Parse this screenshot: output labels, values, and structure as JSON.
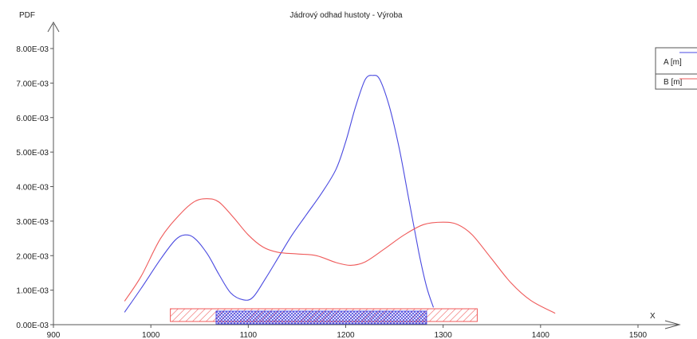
{
  "chart_data": {
    "type": "line",
    "title": "Jádrový odhad hustoty - Výroba",
    "xlabel": "X",
    "ylabel": "PDF",
    "xlim": [
      900,
      1500
    ],
    "ylim": [
      0,
      0.008
    ],
    "x_ticks": [
      "900",
      "1000",
      "1100",
      "1200",
      "1300",
      "1400",
      "1500"
    ],
    "y_ticks": [
      "0.00E-03",
      "1.00E-03",
      "2.00E-03",
      "3.00E-03",
      "4.00E-03",
      "5.00E-03",
      "6.00E-03",
      "7.00E-03",
      "8.00E-03"
    ],
    "legend_position": "top-right",
    "grid": false,
    "series": [
      {
        "name": "A [m]",
        "color": "#4a4ae0",
        "points": [
          [
            973,
            0.00036
          ],
          [
            990,
            0.00105
          ],
          [
            1010,
            0.0019
          ],
          [
            1025,
            0.00245
          ],
          [
            1035,
            0.0026
          ],
          [
            1045,
            0.0025
          ],
          [
            1058,
            0.00205
          ],
          [
            1070,
            0.00145
          ],
          [
            1082,
            0.00092
          ],
          [
            1095,
            0.00072
          ],
          [
            1105,
            0.0008
          ],
          [
            1118,
            0.00135
          ],
          [
            1132,
            0.002
          ],
          [
            1145,
            0.0026
          ],
          [
            1160,
            0.0032
          ],
          [
            1175,
            0.0038
          ],
          [
            1190,
            0.0045
          ],
          [
            1200,
            0.0053
          ],
          [
            1210,
            0.0063
          ],
          [
            1220,
            0.0071
          ],
          [
            1228,
            0.00722
          ],
          [
            1235,
            0.0071
          ],
          [
            1245,
            0.0063
          ],
          [
            1255,
            0.0051
          ],
          [
            1265,
            0.0036
          ],
          [
            1275,
            0.0021
          ],
          [
            1283,
            0.0011
          ],
          [
            1290,
            0.0005
          ]
        ],
        "range_bar": [
          1067,
          1283
        ]
      },
      {
        "name": "B [m]",
        "color": "#ef5a5a",
        "points": [
          [
            973,
            0.00068
          ],
          [
            990,
            0.0014
          ],
          [
            1010,
            0.0025
          ],
          [
            1030,
            0.0032
          ],
          [
            1045,
            0.00357
          ],
          [
            1058,
            0.00365
          ],
          [
            1070,
            0.00355
          ],
          [
            1085,
            0.0031
          ],
          [
            1100,
            0.0026
          ],
          [
            1115,
            0.00225
          ],
          [
            1130,
            0.0021
          ],
          [
            1150,
            0.00205
          ],
          [
            1170,
            0.002
          ],
          [
            1190,
            0.0018
          ],
          [
            1205,
            0.00172
          ],
          [
            1220,
            0.00182
          ],
          [
            1240,
            0.0022
          ],
          [
            1260,
            0.0026
          ],
          [
            1280,
            0.0029
          ],
          [
            1300,
            0.00297
          ],
          [
            1315,
            0.0029
          ],
          [
            1330,
            0.0026
          ],
          [
            1350,
            0.0019
          ],
          [
            1370,
            0.0012
          ],
          [
            1390,
            0.0007
          ],
          [
            1415,
            0.00033
          ]
        ],
        "range_bar": [
          1020,
          1335
        ]
      }
    ]
  }
}
